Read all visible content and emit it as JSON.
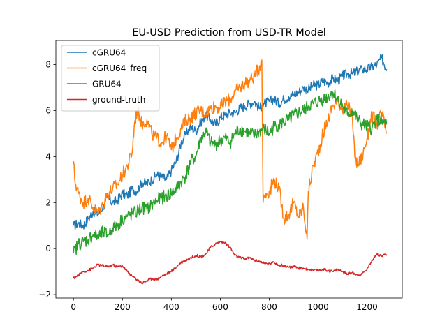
{
  "chart_data": {
    "type": "line",
    "title": "EU-USD Prediction from USD-TR Model",
    "xlabel": "",
    "ylabel": "",
    "xlim": [
      -72,
      1344
    ],
    "ylim": [
      -2.15,
      9.05
    ],
    "xticks": [
      0,
      200,
      400,
      600,
      800,
      1000,
      1200
    ],
    "yticks": [
      -2,
      0,
      2,
      4,
      6,
      8
    ],
    "grid": false,
    "legend_position": "upper-left",
    "series": [
      {
        "name": "cGRU64",
        "color": "#1f77b4",
        "x": [
          0,
          20,
          40,
          60,
          80,
          100,
          120,
          140,
          160,
          180,
          200,
          220,
          240,
          260,
          280,
          300,
          320,
          340,
          360,
          380,
          400,
          420,
          440,
          460,
          480,
          500,
          520,
          540,
          560,
          580,
          600,
          620,
          640,
          660,
          680,
          700,
          720,
          740,
          760,
          780,
          800,
          820,
          840,
          860,
          880,
          900,
          920,
          940,
          960,
          980,
          1000,
          1020,
          1040,
          1060,
          1080,
          1100,
          1120,
          1140,
          1160,
          1180,
          1200,
          1220,
          1240,
          1260,
          1280
        ],
        "y": [
          1.0,
          1.1,
          1.0,
          1.3,
          1.6,
          1.5,
          1.8,
          2.2,
          2.0,
          2.1,
          2.4,
          2.3,
          2.6,
          2.5,
          2.9,
          2.8,
          3.0,
          3.2,
          3.1,
          3.0,
          3.4,
          3.8,
          4.6,
          5.0,
          5.3,
          5.1,
          5.5,
          5.8,
          5.6,
          5.4,
          5.7,
          5.8,
          5.9,
          5.9,
          6.1,
          6.2,
          6.3,
          6.4,
          6.1,
          6.3,
          6.4,
          6.5,
          6.3,
          6.5,
          6.6,
          6.7,
          6.8,
          7.0,
          6.9,
          7.1,
          7.1,
          7.3,
          7.2,
          7.4,
          7.3,
          7.5,
          7.6,
          7.6,
          7.7,
          7.8,
          7.8,
          7.9,
          8.0,
          8.3,
          7.8
        ]
      },
      {
        "name": "cGRU64_freq",
        "color": "#ff7f0e",
        "x": [
          0,
          5,
          20,
          40,
          60,
          80,
          100,
          120,
          140,
          160,
          180,
          200,
          220,
          240,
          250,
          260,
          270,
          280,
          300,
          320,
          340,
          360,
          380,
          400,
          420,
          440,
          460,
          480,
          500,
          520,
          540,
          560,
          580,
          600,
          620,
          640,
          660,
          680,
          700,
          720,
          740,
          760,
          770,
          775,
          780,
          800,
          820,
          840,
          860,
          880,
          900,
          920,
          940,
          955,
          960,
          980,
          1000,
          1020,
          1040,
          1060,
          1080,
          1100,
          1120,
          1140,
          1150,
          1160,
          1180,
          1200,
          1220,
          1240,
          1260,
          1280
        ],
        "y": [
          3.8,
          3.0,
          2.4,
          2.0,
          2.2,
          1.8,
          1.5,
          1.9,
          2.4,
          2.6,
          2.8,
          3.2,
          3.6,
          4.2,
          5.5,
          6.0,
          5.8,
          5.4,
          5.6,
          5.0,
          4.8,
          4.6,
          4.9,
          4.3,
          4.8,
          5.2,
          5.6,
          5.7,
          5.9,
          6.0,
          5.9,
          6.1,
          6.2,
          6.1,
          6.4,
          6.5,
          6.8,
          7.0,
          7.2,
          7.3,
          7.5,
          7.9,
          8.2,
          2.0,
          2.3,
          2.5,
          3.0,
          2.6,
          1.3,
          1.5,
          2.0,
          1.4,
          1.8,
          0.4,
          2.5,
          3.6,
          4.2,
          5.0,
          5.6,
          6.2,
          6.4,
          6.1,
          6.2,
          5.8,
          4.0,
          3.6,
          4.0,
          4.8,
          5.8,
          5.4,
          5.9,
          5.0
        ]
      },
      {
        "name": "GRU64",
        "color": "#2ca02c",
        "x": [
          0,
          20,
          40,
          60,
          80,
          100,
          120,
          140,
          160,
          180,
          200,
          220,
          240,
          260,
          280,
          300,
          320,
          340,
          360,
          380,
          400,
          420,
          440,
          460,
          480,
          500,
          520,
          540,
          560,
          580,
          600,
          620,
          640,
          660,
          680,
          700,
          720,
          740,
          760,
          780,
          800,
          820,
          840,
          860,
          880,
          900,
          920,
          940,
          960,
          980,
          1000,
          1020,
          1040,
          1060,
          1080,
          1100,
          1120,
          1140,
          1160,
          1180,
          1200,
          1220,
          1240,
          1260,
          1280
        ],
        "y": [
          -0.2,
          0.2,
          0.3,
          0.4,
          0.6,
          0.5,
          0.7,
          0.6,
          0.9,
          1.0,
          1.3,
          1.4,
          1.5,
          1.6,
          1.8,
          1.7,
          1.9,
          2.1,
          2.2,
          2.3,
          2.4,
          2.6,
          2.9,
          3.2,
          3.8,
          4.0,
          4.8,
          5.1,
          4.6,
          4.5,
          4.7,
          4.8,
          4.6,
          5.0,
          5.2,
          5.1,
          5.0,
          4.9,
          5.1,
          5.2,
          5.0,
          5.3,
          5.4,
          5.5,
          5.6,
          5.8,
          5.9,
          6.0,
          6.2,
          6.3,
          6.4,
          6.5,
          6.6,
          6.8,
          6.5,
          6.2,
          5.8,
          6.0,
          5.6,
          5.4,
          5.3,
          5.2,
          5.6,
          5.5,
          5.4
        ]
      },
      {
        "name": "ground-truth",
        "color": "#d62728",
        "x": [
          0,
          20,
          40,
          60,
          80,
          100,
          120,
          140,
          160,
          180,
          200,
          220,
          240,
          260,
          280,
          300,
          320,
          340,
          360,
          380,
          400,
          420,
          440,
          460,
          480,
          500,
          520,
          540,
          560,
          580,
          600,
          620,
          640,
          660,
          680,
          700,
          720,
          740,
          760,
          780,
          800,
          820,
          840,
          860,
          880,
          900,
          920,
          940,
          960,
          980,
          1000,
          1020,
          1040,
          1060,
          1080,
          1100,
          1120,
          1140,
          1160,
          1180,
          1200,
          1220,
          1240,
          1260,
          1280
        ],
        "y": [
          -1.3,
          -1.15,
          -1.0,
          -0.95,
          -0.85,
          -0.7,
          -0.75,
          -0.8,
          -0.7,
          -0.8,
          -0.75,
          -1.0,
          -1.2,
          -1.35,
          -1.5,
          -1.4,
          -1.3,
          -1.35,
          -1.2,
          -1.1,
          -1.0,
          -0.8,
          -0.6,
          -0.5,
          -0.4,
          -0.3,
          -0.35,
          -0.25,
          0.05,
          0.2,
          0.3,
          0.25,
          0.05,
          -0.3,
          -0.4,
          -0.45,
          -0.4,
          -0.5,
          -0.55,
          -0.65,
          -0.65,
          -0.6,
          -0.7,
          -0.75,
          -0.8,
          -0.8,
          -0.85,
          -0.85,
          -0.9,
          -0.95,
          -0.95,
          -0.9,
          -0.95,
          -1.0,
          -0.9,
          -1.0,
          -1.1,
          -1.05,
          -1.15,
          -1.1,
          -0.9,
          -0.5,
          -0.25,
          -0.3,
          -0.25
        ]
      }
    ]
  }
}
